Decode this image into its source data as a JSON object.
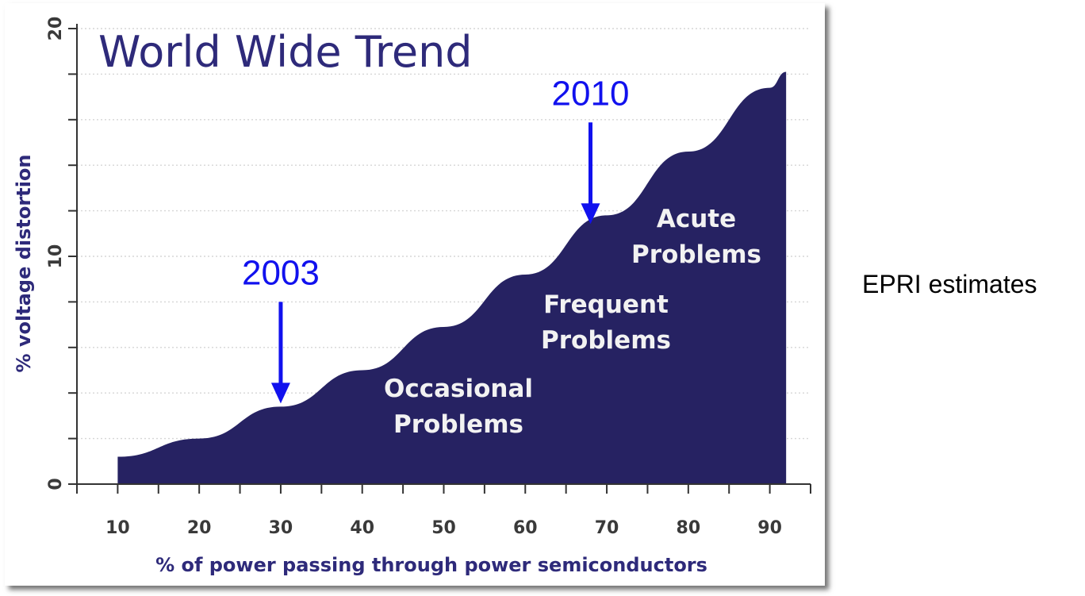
{
  "chart_data": {
    "type": "area",
    "title": "World Wide Trend",
    "xlabel": "% of power passing through power semiconductors",
    "ylabel": "% voltage distortion",
    "x_ticks": [
      "10",
      "20",
      "30",
      "40",
      "50",
      "60",
      "70",
      "80",
      "90"
    ],
    "y_ticks": [
      "0",
      "10",
      "20"
    ],
    "xlim": [
      5,
      95
    ],
    "ylim": [
      0,
      20
    ],
    "grid": true,
    "series": [
      {
        "x": [
          10,
          20,
          30,
          40,
          50,
          60,
          70,
          80,
          90,
          92
        ],
        "values": [
          1.2,
          2.0,
          3.4,
          5.0,
          6.9,
          9.2,
          11.8,
          14.6,
          17.4,
          18.1
        ]
      }
    ],
    "regions": [
      "Occasional Problems",
      "Frequent Problems",
      "Acute Problems"
    ],
    "annotations": [
      {
        "text": "2003",
        "x": 30
      },
      {
        "text": "2010",
        "x": 68
      }
    ],
    "colors": {
      "fill": "#262262",
      "axis_text": "#2e2a7a",
      "region_text": "#f2f2f2",
      "annotation": "#1111ee"
    }
  },
  "note": "EPRI estimates"
}
